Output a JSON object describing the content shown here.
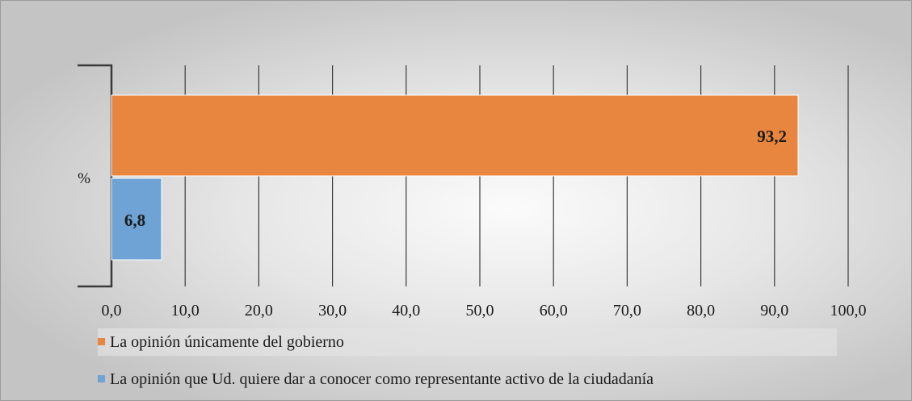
{
  "chart_data": {
    "type": "bar",
    "orientation": "horizontal",
    "category": "%",
    "series": [
      {
        "name": "La opinión únicamente del gobierno",
        "value": 93.2,
        "label": "93,2",
        "color": "#e8853e"
      },
      {
        "name": "La opinión que Ud. quiere dar a conocer como representante activo de la ciudadanía",
        "value": 6.8,
        "label": "6,8",
        "color": "#6fa3d6"
      }
    ],
    "xlim": [
      0,
      100
    ],
    "xticks": [
      "0,0",
      "10,0",
      "20,0",
      "30,0",
      "40,0",
      "50,0",
      "60,0",
      "70,0",
      "80,0",
      "90,0",
      "100,0"
    ],
    "grid": true,
    "legend_position": "bottom",
    "title": "",
    "xlabel": "",
    "ylabel": ""
  }
}
